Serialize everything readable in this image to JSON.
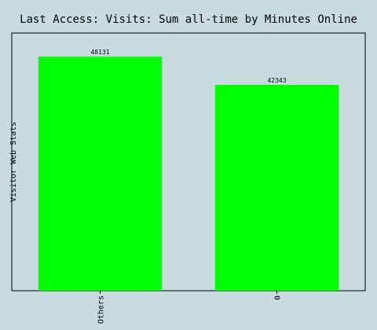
{
  "chart_data": {
    "type": "bar",
    "title": "Last Access: Visits: Sum all-time by Minutes Online",
    "ylabel": "Visitor Web Stats",
    "xlabel": "",
    "categories": [
      "Others",
      "0"
    ],
    "values": [
      48131,
      42343
    ],
    "data_labels": [
      "48131",
      "42343"
    ],
    "ylim": [
      0,
      53000
    ],
    "grid": false,
    "legend": "none",
    "bar_color": "#00ff00",
    "background_color": "#c8dcdf",
    "frame_color": "#000000"
  }
}
